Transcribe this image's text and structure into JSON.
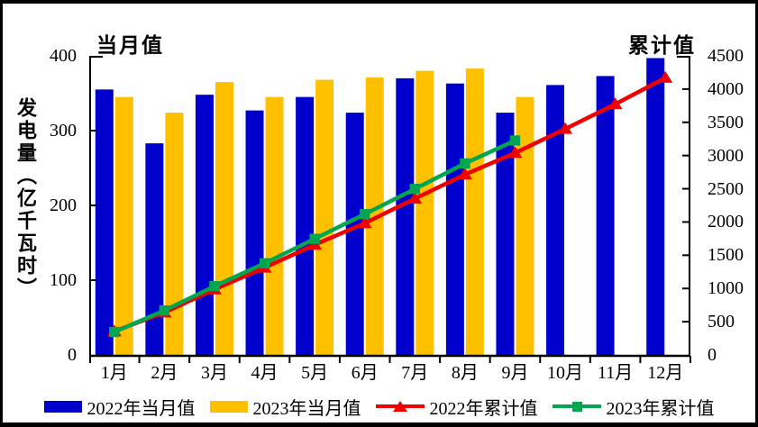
{
  "header": {
    "left_axis_title": "当月值",
    "right_axis_title": "累计值",
    "y_axis_label": "发电量（亿千瓦时）"
  },
  "chart_data": {
    "type": "combo-bar-line",
    "title": "",
    "categories": [
      "1月",
      "2月",
      "3月",
      "4月",
      "5月",
      "6月",
      "7月",
      "8月",
      "9月",
      "10月",
      "11月",
      "12月"
    ],
    "series": [
      {
        "name": "2022年当月值",
        "type": "bar",
        "axis": "left",
        "color": "#0000CC",
        "marker": "none",
        "values": [
          355,
          283,
          348,
          327,
          345,
          324,
          370,
          363,
          324,
          361,
          373,
          397
        ]
      },
      {
        "name": "2023年当月值",
        "type": "bar",
        "axis": "left",
        "color": "#FFC000",
        "marker": "none",
        "values": [
          345,
          324,
          365,
          345,
          368,
          371,
          380,
          383,
          345
        ]
      },
      {
        "name": "2022年累计值",
        "type": "line",
        "axis": "right",
        "color": "#F00000",
        "marker": "triangle",
        "values": [
          355,
          638,
          986,
          1313,
          1658,
          1982,
          2352,
          2715,
          3039,
          3400,
          3773,
          4170
        ]
      },
      {
        "name": "2023年累计值",
        "type": "line",
        "axis": "right",
        "color": "#00A650",
        "marker": "square",
        "values": [
          345,
          669,
          1034,
          1379,
          1747,
          2118,
          2498,
          2881,
          3226
        ]
      }
    ],
    "left_axis": {
      "title": "当月值",
      "min": 0,
      "max": 400,
      "tick_step": 100,
      "ticks": [
        0,
        100,
        200,
        300,
        400
      ]
    },
    "right_axis": {
      "title": "累计值",
      "min": 0,
      "max": 4500,
      "tick_step": 500,
      "ticks": [
        0,
        500,
        1000,
        1500,
        2000,
        2500,
        3000,
        3500,
        4000,
        4500
      ]
    },
    "grid": false,
    "legend_position": "bottom"
  },
  "legend": {
    "items": [
      {
        "label": "2022年当月值",
        "swatch": "rect",
        "color": "#0000CC"
      },
      {
        "label": "2023年当月值",
        "swatch": "rect",
        "color": "#FFC000"
      },
      {
        "label": "2022年累计值",
        "swatch": "line-triangle",
        "color": "#F00000"
      },
      {
        "label": "2023年累计值",
        "swatch": "line-square",
        "color": "#00A650"
      }
    ]
  }
}
